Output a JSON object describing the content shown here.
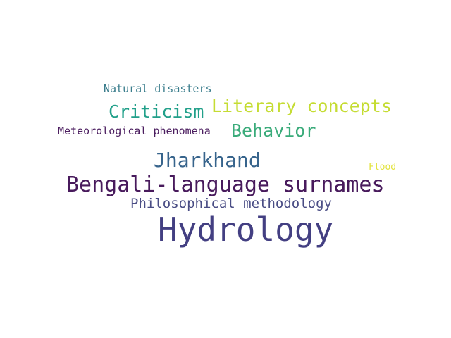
{
  "words": [
    {
      "text": "Natural disasters",
      "color": "#3a7d8c"
    },
    {
      "text": "Criticism",
      "color": "#22a08a"
    },
    {
      "text": "Literary concepts",
      "color": "#c5dc33"
    },
    {
      "text": "Meteorological phenomena",
      "color": "#4b1d5f"
    },
    {
      "text": "Behavior",
      "color": "#3aab7a"
    },
    {
      "text": "Jharkhand",
      "color": "#37648c"
    },
    {
      "text": "Flood",
      "color": "#e2e33c"
    },
    {
      "text": "Bengali-language surnames",
      "color": "#481a5c"
    },
    {
      "text": "Philosophical methodology",
      "color": "#4a4d85"
    },
    {
      "text": "Hydrology",
      "color": "#433f82"
    }
  ]
}
